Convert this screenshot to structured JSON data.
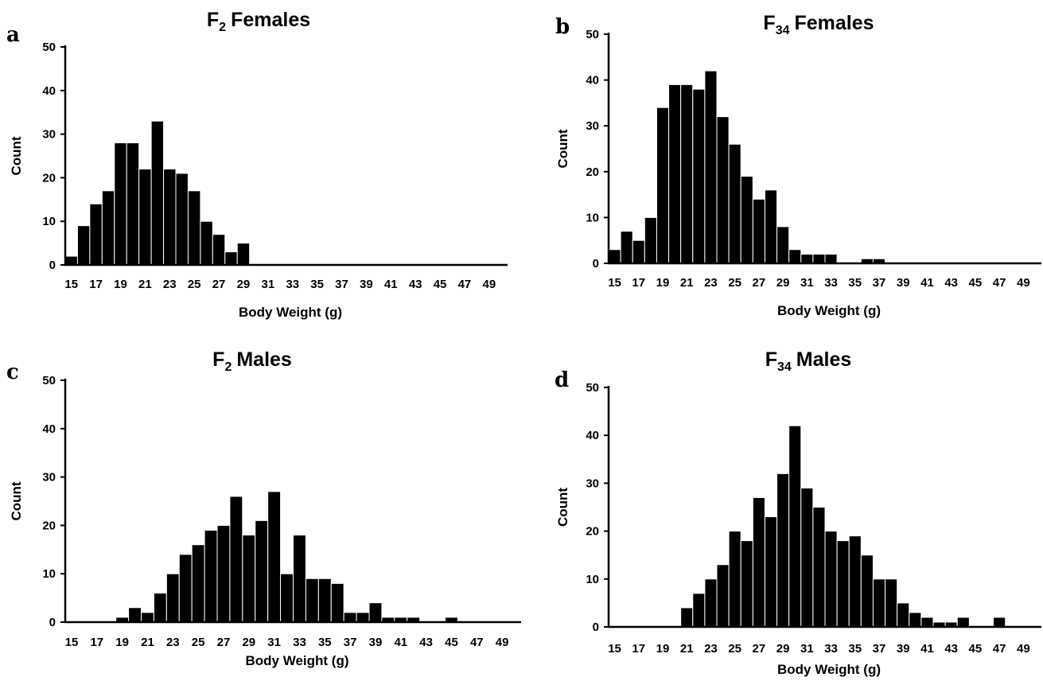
{
  "chart_data": [
    {
      "type": "bar",
      "panel_letter": "a",
      "title": {
        "main": "F",
        "sub": "2",
        "rest": "Females"
      },
      "xlabel": "Body Weight (g)",
      "ylabel": "Count",
      "ylim": [
        0,
        50
      ],
      "yticks": [
        0,
        10,
        20,
        30,
        40,
        50
      ],
      "xtick_labels": [
        "15",
        "17",
        "19",
        "21",
        "23",
        "25",
        "27",
        "29",
        "31",
        "33",
        "35",
        "37",
        "39",
        "41",
        "43",
        "45",
        "47",
        "49"
      ],
      "categories": [
        15,
        16,
        17,
        18,
        19,
        20,
        21,
        22,
        23,
        24,
        25,
        26,
        27,
        28,
        29,
        30,
        31,
        32,
        33,
        34,
        35,
        36,
        37,
        38,
        39,
        40,
        41,
        42,
        43,
        44,
        45,
        46,
        47,
        48,
        49,
        50
      ],
      "values": [
        2,
        9,
        14,
        17,
        28,
        28,
        22,
        33,
        22,
        21,
        17,
        10,
        7,
        3,
        5,
        0,
        0,
        0,
        0,
        0,
        0,
        0,
        0,
        0,
        0,
        0,
        0,
        0,
        0,
        0,
        0,
        0,
        0,
        0,
        0,
        0
      ]
    },
    {
      "type": "bar",
      "panel_letter": "b",
      "title": {
        "main": "F",
        "sub": "34",
        "rest": "Females"
      },
      "xlabel": "Body Weight (g)",
      "ylabel": "Count",
      "ylim": [
        0,
        50
      ],
      "yticks": [
        0,
        10,
        20,
        30,
        40,
        50
      ],
      "xtick_labels": [
        "15",
        "17",
        "19",
        "21",
        "23",
        "25",
        "27",
        "29",
        "31",
        "33",
        "35",
        "37",
        "39",
        "41",
        "43",
        "45",
        "47",
        "49"
      ],
      "categories": [
        15,
        16,
        17,
        18,
        19,
        20,
        21,
        22,
        23,
        24,
        25,
        26,
        27,
        28,
        29,
        30,
        31,
        32,
        33,
        34,
        35,
        36,
        37,
        38,
        39,
        40,
        41,
        42,
        43,
        44,
        45,
        46,
        47,
        48,
        49,
        50
      ],
      "values": [
        3,
        7,
        5,
        10,
        34,
        39,
        39,
        38,
        42,
        32,
        26,
        19,
        14,
        16,
        8,
        3,
        2,
        2,
        2,
        0,
        0,
        1,
        1,
        0,
        0,
        0,
        0,
        0,
        0,
        0,
        0,
        0,
        0,
        0,
        0,
        0
      ]
    },
    {
      "type": "bar",
      "panel_letter": "c",
      "title": {
        "main": "F",
        "sub": "2",
        "rest": "Males"
      },
      "xlabel": "Body Weight (g)",
      "ylabel": "Count",
      "ylim": [
        0,
        50
      ],
      "yticks": [
        0,
        10,
        20,
        30,
        40,
        50
      ],
      "xtick_labels": [
        "15",
        "17",
        "19",
        "21",
        "23",
        "25",
        "27",
        "29",
        "31",
        "33",
        "35",
        "37",
        "39",
        "41",
        "43",
        "45",
        "47",
        "49"
      ],
      "categories": [
        15,
        16,
        17,
        18,
        19,
        20,
        21,
        22,
        23,
        24,
        25,
        26,
        27,
        28,
        29,
        30,
        31,
        32,
        33,
        34,
        35,
        36,
        37,
        38,
        39,
        40,
        41,
        42,
        43,
        44,
        45,
        46,
        47,
        48,
        49,
        50
      ],
      "values": [
        0,
        0,
        0,
        0,
        1,
        3,
        2,
        6,
        10,
        14,
        16,
        19,
        20,
        26,
        18,
        21,
        27,
        10,
        18,
        9,
        9,
        8,
        2,
        2,
        4,
        1,
        1,
        1,
        0,
        0,
        1,
        0,
        0,
        0,
        0,
        0
      ]
    },
    {
      "type": "bar",
      "panel_letter": "d",
      "title": {
        "main": "F",
        "sub": "34",
        "rest": "Males"
      },
      "xlabel": "Body Weight (g)",
      "ylabel": "Count",
      "ylim": [
        0,
        50
      ],
      "yticks": [
        0,
        10,
        20,
        30,
        40,
        50
      ],
      "xtick_labels": [
        "15",
        "17",
        "19",
        "21",
        "23",
        "25",
        "27",
        "29",
        "31",
        "33",
        "35",
        "37",
        "39",
        "41",
        "43",
        "45",
        "47",
        "49"
      ],
      "categories": [
        15,
        16,
        17,
        18,
        19,
        20,
        21,
        22,
        23,
        24,
        25,
        26,
        27,
        28,
        29,
        30,
        31,
        32,
        33,
        34,
        35,
        36,
        37,
        38,
        39,
        40,
        41,
        42,
        43,
        44,
        45,
        46,
        47,
        48,
        49,
        50
      ],
      "values": [
        0,
        0,
        0,
        0,
        0,
        0,
        4,
        7,
        10,
        13,
        20,
        18,
        27,
        23,
        32,
        42,
        29,
        25,
        20,
        18,
        19,
        15,
        10,
        10,
        5,
        3,
        2,
        1,
        1,
        2,
        0,
        0,
        2,
        0,
        0,
        0
      ]
    }
  ]
}
